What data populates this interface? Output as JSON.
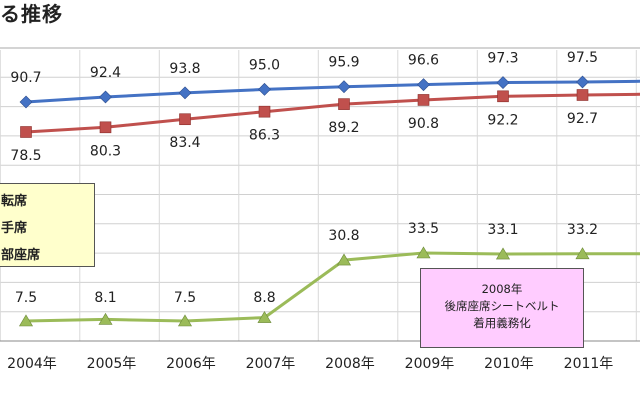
{
  "title": "る推移",
  "note": {
    "lines": [
      "2008年",
      "後席座席シートベルト",
      "着用義務化"
    ]
  },
  "colors": {
    "series_a": "#4472c4",
    "series_b": "#c0504d",
    "series_c": "#9bbb59"
  },
  "chart_data": {
    "type": "line",
    "categories": [
      "2004年",
      "2005年",
      "2006年",
      "2007年",
      "2008年",
      "2009年",
      "2010年",
      "2011年"
    ],
    "series": [
      {
        "name": "転席",
        "marker": "diamond",
        "values": [
          90.7,
          92.4,
          93.8,
          95.0,
          95.9,
          96.6,
          97.3,
          97.5
        ],
        "labels": [
          "90.7",
          "92.4",
          "93.8",
          "95.0",
          "95.9",
          "96.6",
          "97.3",
          "97.5"
        ],
        "label_position": "above"
      },
      {
        "name": "手席",
        "marker": "square",
        "values": [
          78.5,
          80.3,
          83.4,
          86.3,
          89.2,
          90.8,
          92.2,
          92.7
        ],
        "labels": [
          "78.5",
          "80.3",
          "83.4",
          "86.3",
          "89.2",
          "90.8",
          "92.2",
          "92.7"
        ],
        "label_position": "below"
      },
      {
        "name": "部座席",
        "marker": "triangle",
        "values": [
          7.5,
          8.1,
          7.5,
          8.8,
          30.8,
          33.5,
          33.1,
          33.2
        ],
        "labels": [
          "7.5",
          "8.1",
          "7.5",
          "8.8",
          "30.8",
          "33.5",
          "33.1",
          "33.2"
        ],
        "label_position": "above"
      }
    ],
    "grid": true,
    "legend_position": "left"
  }
}
